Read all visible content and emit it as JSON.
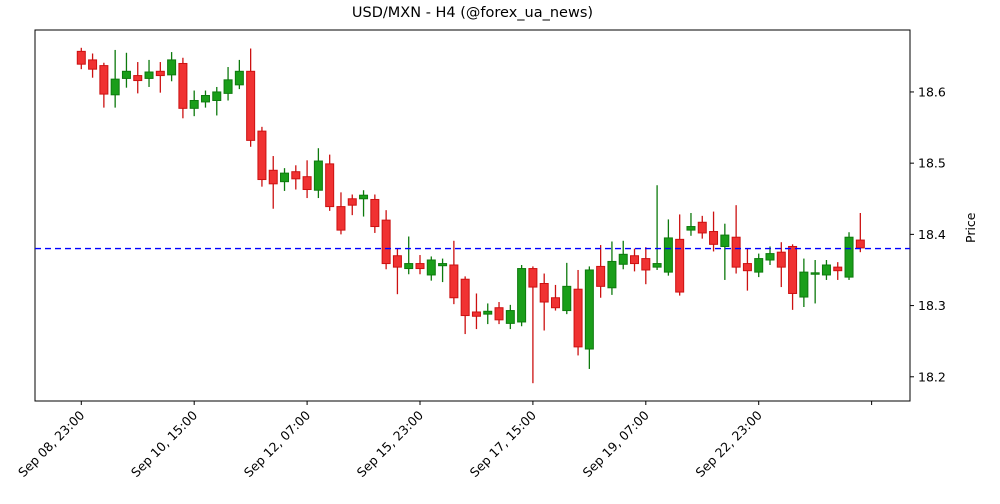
{
  "title": "USD/MXN - H4 (@forex_ua_news)",
  "chart_data": {
    "type": "candlestick",
    "title": "USD/MXN - H4 (@forex_ua_news)",
    "xlabel": "",
    "ylabel": "Price",
    "grid": false,
    "ylim": [
      18.166,
      18.687
    ],
    "xlim_bars": [
      -4.1,
      73.4
    ],
    "y_ticks": [
      18.2,
      18.3,
      18.4,
      18.5,
      18.6
    ],
    "x_tick_bars": [
      0,
      10,
      20,
      30,
      40,
      50,
      60,
      70
    ],
    "x_tick_labels": [
      "Sep 08, 23:00",
      "Sep 10, 15:00",
      "Sep 12, 07:00",
      "Sep 15, 23:00",
      "Sep 17, 15:00",
      "Sep 19, 07:00",
      "Sep 22, 23:00",
      ""
    ],
    "hline": {
      "value": 18.38,
      "color": "#0000ff",
      "style": "dashed"
    },
    "up_color": "#1a9e1a",
    "up_edge": "#0d7a0d",
    "down_color": "#f03232",
    "down_edge": "#cc1111",
    "candles_ohlc_order": "open,high,low,close",
    "candles_ohlc": [
      [
        18.657,
        18.662,
        18.632,
        18.639
      ],
      [
        18.645,
        18.654,
        18.62,
        18.632
      ],
      [
        18.637,
        18.641,
        18.578,
        18.597
      ],
      [
        18.596,
        18.659,
        18.578,
        18.618
      ],
      [
        18.619,
        18.655,
        18.606,
        18.629
      ],
      [
        18.623,
        18.642,
        18.598,
        18.616
      ],
      [
        18.619,
        18.645,
        18.607,
        18.628
      ],
      [
        18.629,
        18.642,
        18.599,
        18.623
      ],
      [
        18.624,
        18.656,
        18.615,
        18.645
      ],
      [
        18.64,
        18.648,
        18.563,
        18.577
      ],
      [
        18.577,
        18.602,
        18.566,
        18.588
      ],
      [
        18.586,
        18.602,
        18.578,
        18.595
      ],
      [
        18.588,
        18.607,
        18.567,
        18.6
      ],
      [
        18.598,
        18.635,
        18.588,
        18.617
      ],
      [
        18.61,
        18.645,
        18.604,
        18.629
      ],
      [
        18.629,
        18.661,
        18.523,
        18.532
      ],
      [
        18.545,
        18.551,
        18.467,
        18.477
      ],
      [
        18.49,
        18.51,
        18.436,
        18.471
      ],
      [
        18.474,
        18.493,
        18.461,
        18.486
      ],
      [
        18.488,
        18.497,
        18.463,
        18.478
      ],
      [
        18.481,
        18.504,
        18.451,
        18.463
      ],
      [
        18.462,
        18.521,
        18.451,
        18.503
      ],
      [
        18.499,
        18.512,
        18.433,
        18.439
      ],
      [
        18.439,
        18.459,
        18.4,
        18.406
      ],
      [
        18.45,
        18.456,
        18.427,
        18.441
      ],
      [
        18.45,
        18.462,
        18.425,
        18.455
      ],
      [
        18.449,
        18.456,
        18.402,
        18.411
      ],
      [
        18.42,
        18.434,
        18.351,
        18.359
      ],
      [
        18.37,
        18.38,
        18.316,
        18.354
      ],
      [
        18.352,
        18.397,
        18.344,
        18.359
      ],
      [
        18.359,
        18.371,
        18.344,
        18.352
      ],
      [
        18.343,
        18.369,
        18.335,
        18.364
      ],
      [
        18.356,
        18.366,
        18.333,
        18.359
      ],
      [
        18.357,
        18.391,
        18.302,
        18.311
      ],
      [
        18.337,
        18.341,
        18.26,
        18.286
      ],
      [
        18.291,
        18.317,
        18.267,
        18.285
      ],
      [
        18.288,
        18.303,
        18.274,
        18.292
      ],
      [
        18.297,
        18.305,
        18.274,
        18.28
      ],
      [
        18.275,
        18.301,
        18.267,
        18.293
      ],
      [
        18.277,
        18.357,
        18.271,
        18.352
      ],
      [
        18.352,
        18.355,
        18.191,
        18.326
      ],
      [
        18.331,
        18.345,
        18.265,
        18.305
      ],
      [
        18.311,
        18.329,
        18.293,
        18.297
      ],
      [
        18.293,
        18.36,
        18.288,
        18.327
      ],
      [
        18.323,
        18.35,
        18.23,
        18.242
      ],
      [
        18.239,
        18.355,
        18.211,
        18.35
      ],
      [
        18.355,
        18.385,
        18.311,
        18.327
      ],
      [
        18.325,
        18.39,
        18.315,
        18.362
      ],
      [
        18.358,
        18.391,
        18.351,
        18.372
      ],
      [
        18.37,
        18.38,
        18.348,
        18.359
      ],
      [
        18.366,
        18.382,
        18.33,
        18.35
      ],
      [
        18.354,
        18.469,
        18.35,
        18.359
      ],
      [
        18.347,
        18.421,
        18.342,
        18.395
      ],
      [
        18.393,
        18.428,
        18.314,
        18.319
      ],
      [
        18.406,
        18.43,
        18.398,
        18.411
      ],
      [
        18.417,
        18.426,
        18.394,
        18.402
      ],
      [
        18.404,
        18.432,
        18.376,
        18.386
      ],
      [
        18.383,
        18.415,
        18.336,
        18.399
      ],
      [
        18.396,
        18.441,
        18.345,
        18.354
      ],
      [
        18.359,
        18.38,
        18.321,
        18.349
      ],
      [
        18.347,
        18.373,
        18.34,
        18.366
      ],
      [
        18.364,
        18.383,
        18.357,
        18.373
      ],
      [
        18.375,
        18.389,
        18.326,
        18.354
      ],
      [
        18.383,
        18.386,
        18.294,
        18.317
      ],
      [
        18.312,
        18.366,
        18.298,
        18.347
      ],
      [
        18.344,
        18.364,
        18.303,
        18.346
      ],
      [
        18.343,
        18.364,
        18.336,
        18.357
      ],
      [
        18.354,
        18.361,
        18.336,
        18.349
      ],
      [
        18.34,
        18.403,
        18.336,
        18.396
      ],
      [
        18.392,
        18.43,
        18.375,
        18.381
      ]
    ]
  }
}
